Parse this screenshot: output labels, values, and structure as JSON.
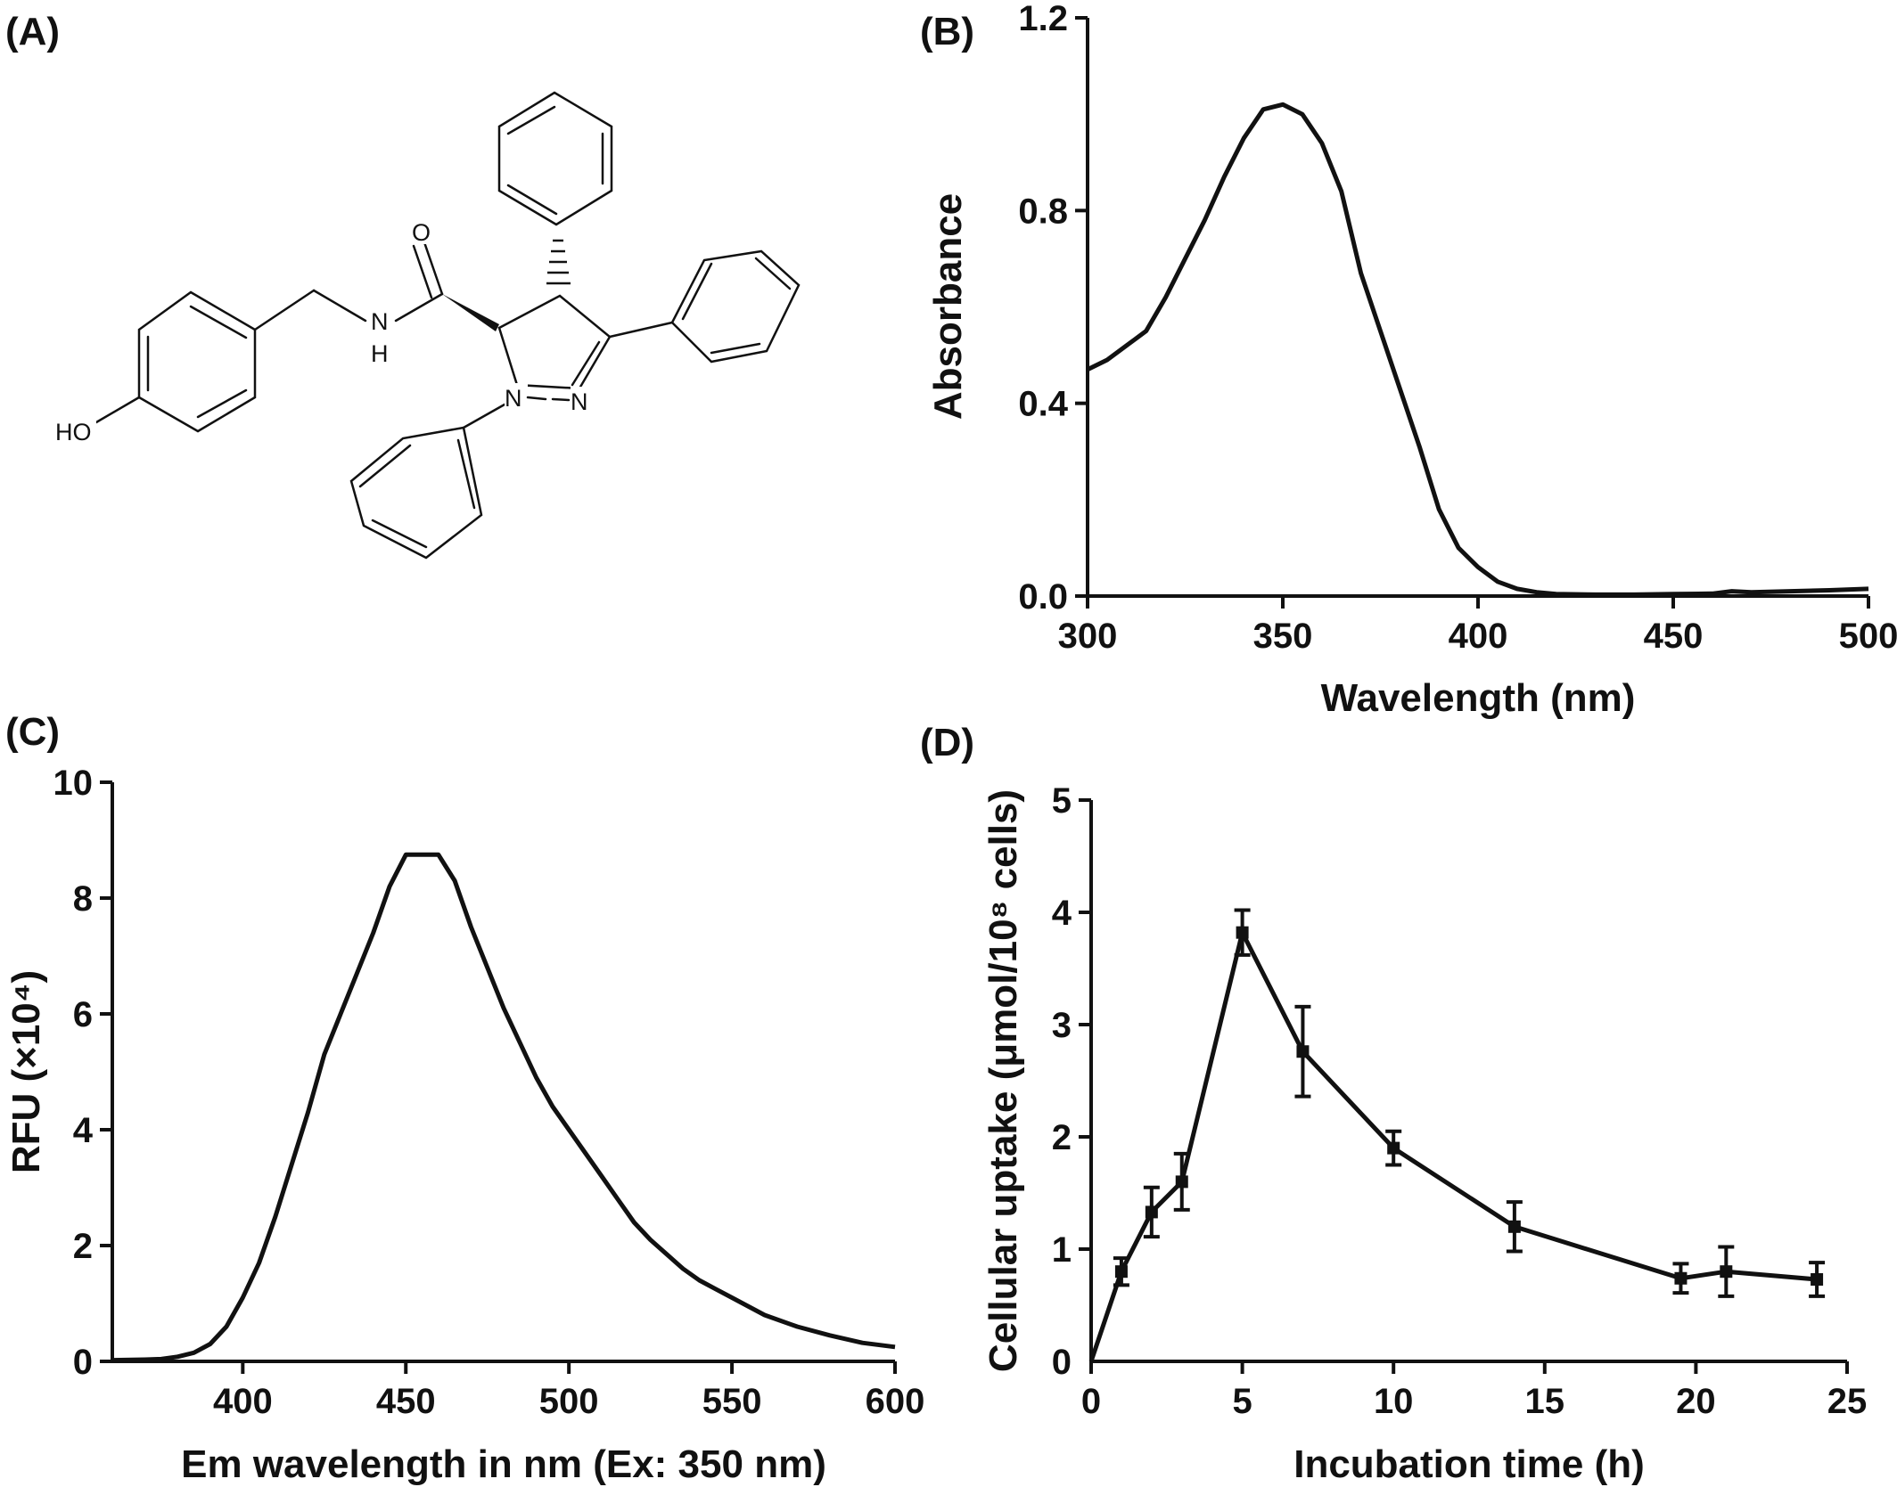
{
  "panels": {
    "a": {
      "label": "(A)"
    },
    "b": {
      "label": "(B)"
    },
    "c": {
      "label": "(C)"
    },
    "d": {
      "label": "(D)"
    }
  },
  "molecule": {
    "atoms": {
      "oxygen": "O",
      "amide_n": "N",
      "amide_h": "H",
      "hydroxyl": "HO",
      "ring_n1": "N",
      "ring_n2": "N"
    }
  },
  "chart_data": [
    {
      "panel": "(B)",
      "type": "line",
      "xlabel": "Wavelength (nm)",
      "ylabel": "Absorbance",
      "xlim": [
        300,
        500
      ],
      "ylim": [
        0,
        1.2
      ],
      "xticks": [
        300,
        350,
        400,
        450,
        500
      ],
      "yticks": [
        "0.0",
        "0.4",
        "0.8",
        "1.2"
      ],
      "grid": false,
      "x": [
        300,
        305,
        310,
        315,
        320,
        325,
        330,
        335,
        340,
        345,
        350,
        355,
        360,
        365,
        370,
        375,
        380,
        385,
        390,
        395,
        400,
        405,
        410,
        415,
        420,
        430,
        440,
        450,
        460,
        465,
        470,
        480,
        490,
        500
      ],
      "y": [
        0.47,
        0.49,
        0.52,
        0.55,
        0.62,
        0.7,
        0.78,
        0.87,
        0.95,
        1.01,
        1.02,
        1.0,
        0.94,
        0.84,
        0.67,
        0.55,
        0.43,
        0.31,
        0.18,
        0.1,
        0.06,
        0.03,
        0.015,
        0.008,
        0.004,
        0.003,
        0.003,
        0.004,
        0.005,
        0.01,
        0.008,
        0.01,
        0.012,
        0.015
      ]
    },
    {
      "panel": "(C)",
      "type": "line",
      "xlabel": "Em wavelength in nm (Ex: 350 nm)",
      "ylabel": "RFU (×10⁴)",
      "xlim": [
        360,
        600
      ],
      "ylim": [
        0,
        10
      ],
      "xticks": [
        400,
        450,
        500,
        550,
        600
      ],
      "yticks": [
        0,
        2,
        4,
        6,
        8,
        10
      ],
      "grid": false,
      "x": [
        360,
        370,
        375,
        380,
        385,
        390,
        395,
        400,
        405,
        410,
        415,
        420,
        425,
        430,
        435,
        440,
        445,
        450,
        455,
        460,
        465,
        470,
        475,
        480,
        485,
        490,
        495,
        500,
        505,
        510,
        515,
        520,
        525,
        530,
        535,
        540,
        545,
        550,
        560,
        570,
        580,
        590,
        600
      ],
      "y": [
        0.02,
        0.03,
        0.04,
        0.08,
        0.15,
        0.3,
        0.6,
        1.1,
        1.7,
        2.5,
        3.4,
        4.3,
        5.3,
        6.0,
        6.7,
        7.4,
        8.2,
        8.75,
        8.75,
        8.75,
        8.3,
        7.5,
        6.8,
        6.1,
        5.5,
        4.9,
        4.4,
        4.0,
        3.6,
        3.2,
        2.8,
        2.4,
        2.1,
        1.85,
        1.6,
        1.4,
        1.25,
        1.1,
        0.8,
        0.6,
        0.45,
        0.32,
        0.25
      ]
    },
    {
      "panel": "(D)",
      "type": "line",
      "xlabel": "Incubation time (h)",
      "ylabel": "Cellular uptake (μmol/10⁸ cells)",
      "xlim": [
        0,
        25
      ],
      "ylim": [
        0,
        5
      ],
      "xticks": [
        0,
        5,
        10,
        15,
        20,
        25
      ],
      "yticks": [
        1,
        2,
        3,
        4,
        5
      ],
      "grid": false,
      "marker": "square",
      "error_bars": true,
      "x": [
        0,
        1,
        2,
        3,
        5,
        7,
        10,
        14,
        19.5,
        21,
        24
      ],
      "y": [
        0,
        0.8,
        1.33,
        1.6,
        3.82,
        2.76,
        1.9,
        1.2,
        0.74,
        0.8,
        0.73
      ],
      "err": [
        0,
        0.12,
        0.22,
        0.25,
        0.2,
        0.4,
        0.15,
        0.22,
        0.13,
        0.22,
        0.15
      ]
    }
  ]
}
